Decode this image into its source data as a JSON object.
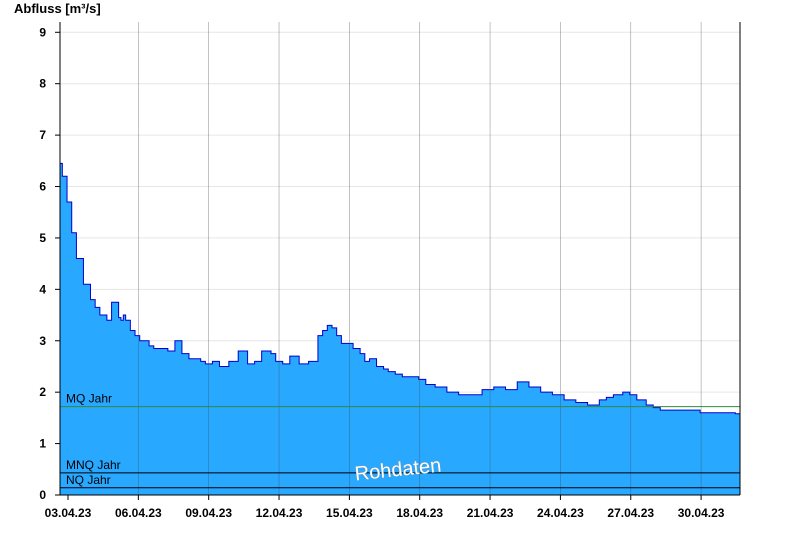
{
  "chart_data": {
    "type": "area",
    "ylabel": "Abfluss [m³/s]",
    "ylim": [
      0,
      9.2
    ],
    "yticks": [
      "0",
      "1",
      "2",
      "3",
      "4",
      "5",
      "6",
      "7",
      "8",
      "9"
    ],
    "xlim": [
      0,
      29
    ],
    "xticks": [
      "03.04.23",
      "06.04.23",
      "09.04.23",
      "12.04.23",
      "15.04.23",
      "18.04.23",
      "21.04.23",
      "24.04.23",
      "27.04.23",
      "30.04.23"
    ],
    "grid": true,
    "reference_lines": [
      {
        "label": "MQ Jahr",
        "value": 1.72,
        "color": "#2e8b3a"
      },
      {
        "label": "MNQ Jahr",
        "value": 0.43,
        "color": "#000000"
      },
      {
        "label": "NQ Jahr",
        "value": 0.14,
        "color": "#000000"
      }
    ],
    "annotation": "Rohdaten",
    "fill_color": "#29a8ff",
    "line_color": "#0000cc",
    "series": [
      {
        "x": [
          0,
          0.1,
          0.3,
          0.5,
          0.7,
          1.0,
          1.3,
          1.5,
          1.7,
          2.0,
          2.2,
          2.5,
          2.6,
          2.7,
          2.8,
          3.0,
          3.2,
          3.4,
          3.6,
          3.8,
          4.0,
          4.3,
          4.6,
          4.9,
          5.2,
          5.5,
          5.8,
          6.0,
          6.2,
          6.5,
          6.8,
          7.2,
          7.6,
          8.0,
          8.3,
          8.6,
          9.0,
          9.2,
          9.5,
          9.8,
          10.2,
          10.6,
          11.0,
          11.2,
          11.4,
          11.6,
          11.8,
          12.0,
          12.5,
          12.8,
          13.0,
          13.2,
          13.5,
          13.8,
          14.0,
          14.3,
          14.6,
          15.0,
          15.3,
          15.6,
          16.0,
          16.5,
          17.0,
          17.5,
          18.0,
          18.5,
          19.0,
          19.5,
          20.0,
          20.5,
          21.0,
          21.5,
          22.0,
          22.5,
          23.0,
          23.3,
          23.6,
          24.0,
          24.3,
          24.6,
          25.0,
          25.3,
          25.6,
          26.0,
          26.3,
          26.6,
          27.0,
          27.3,
          27.6,
          28.0,
          28.5,
          28.8,
          29.0
        ],
        "values": [
          6.45,
          6.2,
          5.7,
          5.1,
          4.6,
          4.1,
          3.8,
          3.65,
          3.5,
          3.4,
          3.75,
          3.45,
          3.4,
          3.5,
          3.4,
          3.2,
          3.1,
          3.0,
          3.0,
          2.9,
          2.85,
          2.85,
          2.8,
          3.0,
          2.75,
          2.65,
          2.65,
          2.6,
          2.55,
          2.6,
          2.5,
          2.6,
          2.8,
          2.55,
          2.6,
          2.8,
          2.75,
          2.6,
          2.55,
          2.7,
          2.55,
          2.6,
          3.1,
          3.2,
          3.3,
          3.25,
          3.1,
          2.95,
          2.85,
          2.75,
          2.6,
          2.65,
          2.5,
          2.45,
          2.4,
          2.35,
          2.3,
          2.3,
          2.25,
          2.15,
          2.1,
          2.0,
          1.95,
          1.95,
          2.05,
          2.1,
          2.05,
          2.2,
          2.1,
          2.0,
          1.95,
          1.85,
          1.8,
          1.75,
          1.85,
          1.9,
          1.95,
          2.0,
          1.95,
          1.85,
          1.75,
          1.7,
          1.65,
          1.65,
          1.65,
          1.65,
          1.65,
          1.6,
          1.6,
          1.6,
          1.6,
          1.58,
          1.55
        ]
      }
    ]
  }
}
